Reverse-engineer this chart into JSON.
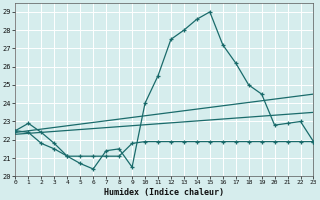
{
  "title": "",
  "xlabel": "Humidex (Indice chaleur)",
  "ylabel": "",
  "xlim": [
    0,
    23
  ],
  "ylim": [
    20,
    29.5
  ],
  "yticks": [
    20,
    21,
    22,
    23,
    24,
    25,
    26,
    27,
    28,
    29
  ],
  "xticks": [
    0,
    1,
    2,
    3,
    4,
    5,
    6,
    7,
    8,
    9,
    10,
    11,
    12,
    13,
    14,
    15,
    16,
    17,
    18,
    19,
    20,
    21,
    22,
    23
  ],
  "background_color": "#d6eded",
  "grid_color": "#b8d8d8",
  "line_color": "#1a6b6b",
  "curve1_x": [
    0,
    1,
    2,
    3,
    4,
    5,
    6,
    7,
    8,
    9,
    10,
    11,
    12,
    13,
    14,
    15,
    16,
    17,
    18,
    19,
    20,
    21,
    22,
    23
  ],
  "curve1_y": [
    22.5,
    22.9,
    22.4,
    21.8,
    21.1,
    20.7,
    20.4,
    21.4,
    21.5,
    20.5,
    24.0,
    25.5,
    27.5,
    28.0,
    28.6,
    29.0,
    27.2,
    26.2,
    25.0,
    24.5,
    22.8,
    22.9,
    23.0,
    21.9
  ],
  "curve2_x": [
    0,
    1,
    2,
    3,
    4,
    5,
    6,
    7,
    8,
    9,
    10,
    11,
    12,
    13,
    14,
    15,
    16,
    17,
    18,
    19,
    20,
    21,
    22,
    23
  ],
  "curve2_y": [
    22.5,
    22.4,
    21.8,
    21.5,
    21.1,
    21.1,
    21.1,
    21.1,
    21.1,
    21.8,
    21.9,
    21.9,
    21.9,
    21.9,
    21.9,
    21.9,
    21.9,
    21.9,
    21.9,
    21.9,
    21.9,
    21.9,
    21.9,
    21.9
  ],
  "line3_x": [
    0,
    23
  ],
  "line3_y": [
    22.4,
    24.5
  ],
  "line4_x": [
    0,
    23
  ],
  "line4_y": [
    22.3,
    23.5
  ]
}
